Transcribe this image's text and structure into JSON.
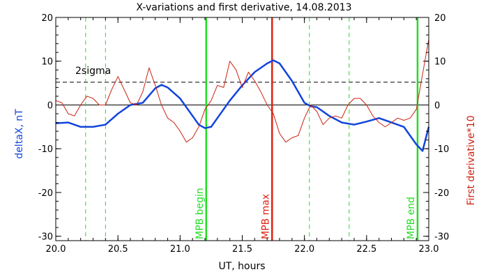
{
  "chart_data": {
    "type": "line",
    "title": "X-variations and first derivative, 14.08.2013",
    "xlabel": "UT, hours",
    "ylabel_left": "deltaX, nT",
    "ylabel_right": "First derivative*10",
    "xlim": [
      20.0,
      23.0
    ],
    "ylim": [
      -31,
      20
    ],
    "x_ticks": [
      20.0,
      20.5,
      21.0,
      21.5,
      22.0,
      22.5,
      23.0
    ],
    "x_tick_labels": [
      "20.0",
      "20.5",
      "21.0",
      "21.5",
      "22.0",
      "22.5",
      "23.0"
    ],
    "y_ticks": [
      -30,
      -20,
      -10,
      0,
      10,
      20
    ],
    "y_tick_labels": [
      "-30",
      "-20",
      "-10",
      "0",
      "10",
      "20"
    ],
    "zero_line": 0,
    "sigma_level": 5.2,
    "sigma_label": "2sigma",
    "green_dashed_x": [
      20.24,
      20.4,
      22.04,
      22.36
    ],
    "markers": [
      {
        "label": "MPB begin",
        "x": 21.21,
        "color": "#22dd22"
      },
      {
        "label": "MPB max",
        "x": 21.74,
        "color": "#dd2211"
      },
      {
        "label": "MPB end",
        "x": 22.91,
        "color": "#22dd22"
      }
    ],
    "series": [
      {
        "color": "#1144dd",
        "x": [
          20.0,
          20.1,
          20.2,
          20.3,
          20.4,
          20.5,
          20.6,
          20.7,
          20.8,
          20.85,
          20.9,
          21.0,
          21.1,
          21.15,
          21.2,
          21.25,
          21.3,
          21.4,
          21.5,
          21.6,
          21.7,
          21.75,
          21.8,
          21.9,
          22.0,
          22.05,
          22.1,
          22.2,
          22.3,
          22.4,
          22.5,
          22.6,
          22.7,
          22.8,
          22.9,
          22.95,
          23.0
        ],
        "values": [
          -4.2,
          -4.0,
          -5.0,
          -5.0,
          -4.5,
          -2.0,
          0.0,
          0.5,
          3.8,
          4.6,
          4.0,
          1.5,
          -2.5,
          -4.5,
          -5.3,
          -5.0,
          -3.0,
          1.0,
          4.5,
          7.5,
          9.5,
          10.2,
          9.5,
          5.5,
          0.5,
          -0.3,
          -0.5,
          -2.5,
          -4.0,
          -4.5,
          -3.8,
          -3.0,
          -4.0,
          -5.0,
          -9.0,
          -10.5,
          -5.0
        ]
      },
      {
        "color": "#cc2211",
        "x": [
          20.0,
          20.05,
          20.1,
          20.15,
          20.2,
          20.25,
          20.3,
          20.35,
          20.4,
          20.45,
          20.5,
          20.55,
          20.6,
          20.65,
          20.7,
          20.75,
          20.8,
          20.85,
          20.9,
          20.95,
          21.0,
          21.05,
          21.1,
          21.15,
          21.2,
          21.25,
          21.3,
          21.35,
          21.4,
          21.45,
          21.5,
          21.55,
          21.6,
          21.65,
          21.7,
          21.75,
          21.8,
          21.85,
          21.9,
          21.95,
          22.0,
          22.05,
          22.1,
          22.15,
          22.2,
          22.25,
          22.3,
          22.35,
          22.4,
          22.45,
          22.5,
          22.55,
          22.6,
          22.65,
          22.7,
          22.75,
          22.8,
          22.85,
          22.9,
          22.95,
          23.0
        ],
        "values": [
          1.0,
          0.5,
          -2.0,
          -2.5,
          0.0,
          2.0,
          1.5,
          0.0,
          0.0,
          3.5,
          6.5,
          3.5,
          0.5,
          0.0,
          3.0,
          8.5,
          4.5,
          0.0,
          -3.0,
          -4.0,
          -6.0,
          -8.5,
          -7.5,
          -5.0,
          -1.0,
          1.0,
          4.5,
          4.0,
          10.0,
          8.0,
          4.0,
          7.5,
          5.5,
          3.0,
          0.0,
          -2.0,
          -6.5,
          -8.5,
          -7.5,
          -7.0,
          -3.0,
          0.0,
          -1.5,
          -4.5,
          -3.0,
          -2.5,
          -3.0,
          0.0,
          1.5,
          1.5,
          0.0,
          -2.5,
          -4.0,
          -5.0,
          -4.0,
          -3.0,
          -3.5,
          -3.0,
          -1.0,
          7.0,
          15.0
        ]
      }
    ]
  }
}
